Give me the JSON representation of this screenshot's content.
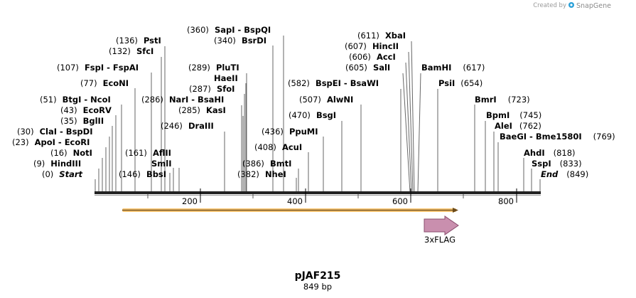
{
  "credit": {
    "prefix": "Created by",
    "brand": "SnapGene"
  },
  "plasmid": {
    "name": "pJAF215",
    "size_label": "849 bp"
  },
  "feature": {
    "name": "3xFLAG"
  },
  "colors": {
    "feature_fill": "#c98fae",
    "feature_stroke": "#8a4d6e",
    "orf_fill": "#f6c472",
    "orf_line": "#6b4a1a",
    "brand_icon": "#2aa0d8"
  },
  "ticks": [
    {
      "bp": 200,
      "label": "200"
    },
    {
      "bp": 400,
      "label": "400"
    },
    {
      "bp": 600,
      "label": "600"
    },
    {
      "bp": 800,
      "label": "800"
    }
  ],
  "sites": [
    {
      "pos": "(0)",
      "name": "Start",
      "italic": true
    },
    {
      "pos": "(9)",
      "name": "HindIII"
    },
    {
      "pos": "(16)",
      "name": "NotI"
    },
    {
      "pos": "(23)",
      "name": "ApoI  - EcoRI"
    },
    {
      "pos": "(30)",
      "name": "ClaI  - BspDI"
    },
    {
      "pos": "(35)",
      "name": "BglII"
    },
    {
      "pos": "(43)",
      "name": "EcoRV"
    },
    {
      "pos": "(51)",
      "name": "BtgI  - NcoI"
    },
    {
      "pos": "(77)",
      "name": "EcoNI"
    },
    {
      "pos": "(107)",
      "name": "FspI  - FspAI"
    },
    {
      "pos": "(132)",
      "name": "SfcI"
    },
    {
      "pos": "(136)",
      "name": "PstI"
    },
    {
      "pos": "(146)",
      "name": "BbsI"
    },
    {
      "pos": "",
      "name": "SmlI"
    },
    {
      "pos": "(161)",
      "name": "AflII"
    },
    {
      "pos": "(246)",
      "name": "DraIII"
    },
    {
      "pos": "(286)",
      "name": "NarI  - BsaHI"
    },
    {
      "pos": "(285)",
      "name": "KasI"
    },
    {
      "pos": "(287)",
      "name": "SfoI"
    },
    {
      "pos": "",
      "name": "HaeII"
    },
    {
      "pos": "(289)",
      "name": "PluTI"
    },
    {
      "pos": "(340)",
      "name": "BsrDI"
    },
    {
      "pos": "(360)",
      "name": "SapI  - BspQI"
    },
    {
      "pos": "(382)",
      "name": "NheI"
    },
    {
      "pos": "(386)",
      "name": "BmtI"
    },
    {
      "pos": "(408)",
      "name": "AcuI"
    },
    {
      "pos": "(436)",
      "name": "PpuMI"
    },
    {
      "pos": "(470)",
      "name": "BsgI"
    },
    {
      "pos": "(507)",
      "name": "AlwNI"
    },
    {
      "pos": "(582)",
      "name": "BspEI  - BsaWI"
    },
    {
      "pos": "(605)",
      "name": "SalI"
    },
    {
      "pos": "(606)",
      "name": "AccI"
    },
    {
      "pos": "(607)",
      "name": "HincII"
    },
    {
      "pos": "(611)",
      "name": "XbaI"
    },
    {
      "pos": "(617)",
      "name": "BamHI"
    },
    {
      "pos": "(654)",
      "name": "PsiI"
    },
    {
      "pos": "(723)",
      "name": "BmrI"
    },
    {
      "pos": "(745)",
      "name": "BpmI"
    },
    {
      "pos": "(762)",
      "name": "AleI"
    },
    {
      "pos": "(769)",
      "name": "BaeGI  - Bme1580I"
    },
    {
      "pos": "(818)",
      "name": "AhdI"
    },
    {
      "pos": "(833)",
      "name": "SspI"
    },
    {
      "pos": "(849)",
      "name": "End",
      "italic": true
    }
  ]
}
